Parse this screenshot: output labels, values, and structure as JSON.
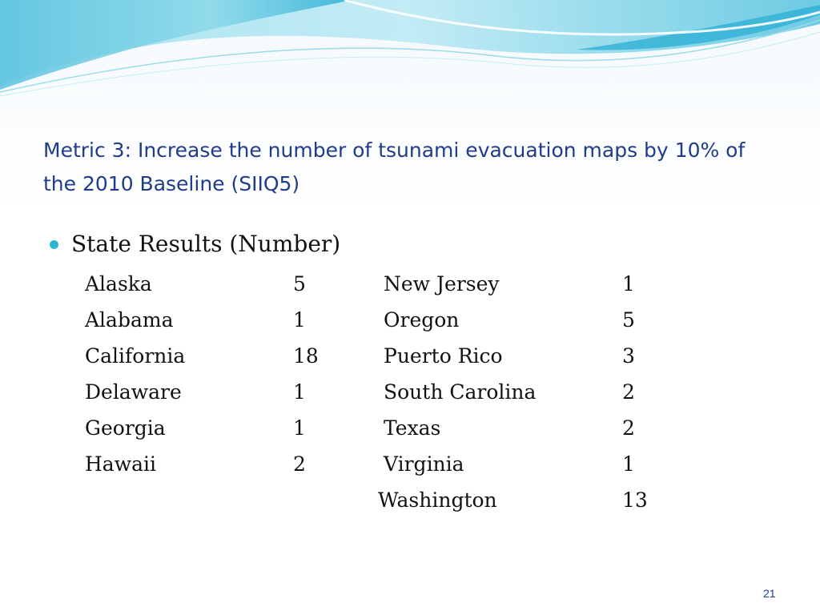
{
  "slide": {
    "title": "Metric 3:  Increase the number of tsunami evacuation maps by 10% of the 2010 Baseline (SIIQ5)",
    "bullet": "State Results (Number)",
    "left_column": [
      {
        "state": "Alaska",
        "count": "5"
      },
      {
        "state": "Alabama",
        "count": "1"
      },
      {
        "state": "California",
        "count": "18"
      },
      {
        "state": "Delaware",
        "count": "1"
      },
      {
        "state": "Georgia",
        "count": "1"
      },
      {
        "state": "Hawaii",
        "count": "2"
      }
    ],
    "right_column": [
      {
        "state": "New Jersey",
        "count": "1"
      },
      {
        "state": "Oregon",
        "count": "5"
      },
      {
        "state": "Puerto Rico",
        "count": "3"
      },
      {
        "state": "South Carolina",
        "count": "2"
      },
      {
        "state": "Texas",
        "count": "2"
      },
      {
        "state": "Virginia",
        "count": "1"
      },
      {
        "state": "Washington",
        "count": "13"
      }
    ],
    "page_number": "21"
  },
  "colors": {
    "title": "#1f3c8c",
    "bullet": "#2bb6d6",
    "wave_light": "#c8eef6",
    "wave_mid": "#7fd3e8",
    "wave_dark": "#3fb8d8"
  }
}
